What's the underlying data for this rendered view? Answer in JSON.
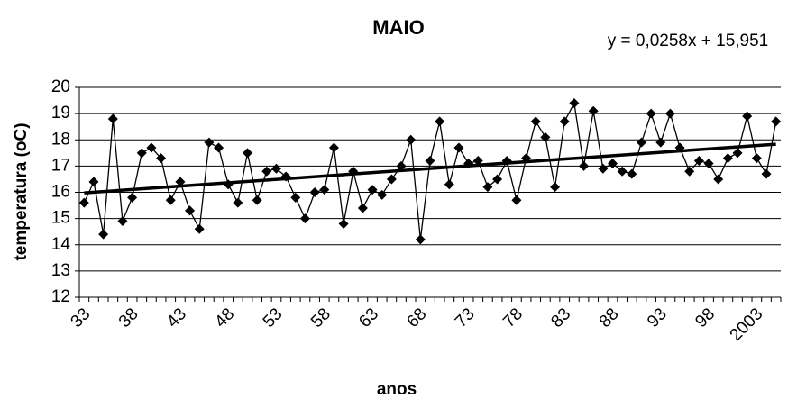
{
  "chart_data": {
    "type": "line",
    "title": "MAIO",
    "x_label": "anos",
    "y_label": "temperatura (oC)",
    "categories": [
      "33",
      null,
      null,
      null,
      null,
      "38",
      null,
      null,
      null,
      null,
      "43",
      null,
      null,
      null,
      null,
      "48",
      null,
      null,
      null,
      null,
      "53",
      null,
      null,
      null,
      null,
      "58",
      null,
      null,
      null,
      null,
      "63",
      null,
      null,
      null,
      null,
      "68",
      null,
      null,
      null,
      null,
      "73",
      null,
      null,
      null,
      null,
      "78",
      null,
      null,
      null,
      null,
      "83",
      null,
      null,
      null,
      null,
      "88",
      null,
      null,
      null,
      null,
      "93",
      null,
      null,
      null,
      null,
      "98",
      null,
      null,
      null,
      null,
      "2003",
      null,
      null
    ],
    "series": [
      {
        "name": "temperatura",
        "color": "#000000",
        "values": [
          15.6,
          16.4,
          14.4,
          18.8,
          14.9,
          15.8,
          17.5,
          17.7,
          17.3,
          15.7,
          16.4,
          15.3,
          14.6,
          17.9,
          17.7,
          16.3,
          15.6,
          17.5,
          15.7,
          16.8,
          16.9,
          16.6,
          15.8,
          15.0,
          16.0,
          16.1,
          17.7,
          14.8,
          16.8,
          15.4,
          16.1,
          15.9,
          16.5,
          17.0,
          18.0,
          14.2,
          17.2,
          18.7,
          16.3,
          17.7,
          17.1,
          17.2,
          16.2,
          16.5,
          17.2,
          15.7,
          17.3,
          18.7,
          18.1,
          16.2,
          18.7,
          19.4,
          17.0,
          19.1,
          16.9,
          17.1,
          16.8,
          16.7,
          17.9,
          19.0,
          17.9,
          19.0,
          17.7,
          16.8,
          17.2,
          17.1,
          16.5,
          17.3,
          17.5,
          18.9,
          17.3,
          16.7,
          18.7
        ]
      }
    ],
    "trendline": {
      "slope": 0.0258,
      "intercept": 15.951,
      "label": "y = 0,0258x + 15,951"
    },
    "ylim": [
      12,
      20
    ],
    "yticks": [
      12,
      13,
      14,
      15,
      16,
      17,
      18,
      19,
      20
    ],
    "grid": true
  }
}
